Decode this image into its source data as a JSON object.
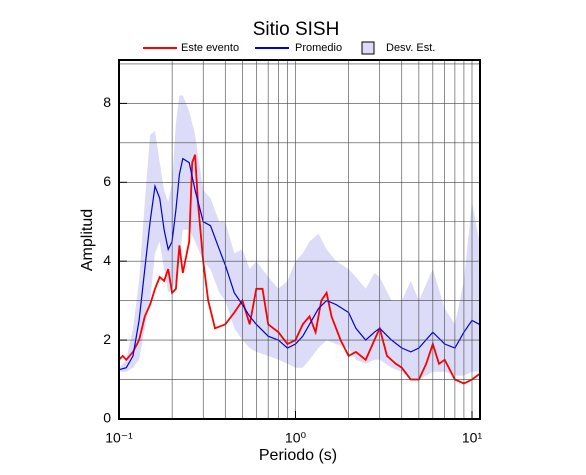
{
  "chart_data": {
    "type": "line",
    "title": "Sitio SISH",
    "x_label": "Periodo (s)",
    "y_label": "Amplitud",
    "log_x": true,
    "grid": true,
    "legend": "top",
    "xlim": [
      0.1,
      11.1
    ],
    "ylim": [
      0,
      9.1
    ],
    "xticks": [
      {
        "value": 0.1,
        "label": "10⁻¹"
      },
      {
        "value": 1,
        "label": "10⁰"
      },
      {
        "value": 10,
        "label": "10¹"
      }
    ],
    "minor_xticks": [
      0.2,
      0.3,
      0.4,
      0.5,
      0.6,
      0.7,
      0.8,
      0.9,
      2,
      3,
      4,
      5,
      6,
      7,
      8,
      9
    ],
    "yticks": [
      0,
      2,
      4,
      6,
      8
    ],
    "minor_yticks": [
      1,
      3,
      5,
      7,
      9
    ],
    "series": [
      {
        "name": "Desv. Est.",
        "kind": "band",
        "color": "#dcdcf8",
        "x": [
          0.1,
          0.11,
          0.12,
          0.13,
          0.14,
          0.15,
          0.16,
          0.17,
          0.18,
          0.19,
          0.2,
          0.21,
          0.22,
          0.23,
          0.25,
          0.27,
          0.3,
          0.33,
          0.37,
          0.4,
          0.45,
          0.5,
          0.55,
          0.6,
          0.7,
          0.8,
          0.9,
          1.0,
          1.1,
          1.2,
          1.35,
          1.5,
          1.7,
          2.0,
          2.2,
          2.5,
          2.8,
          3.0,
          3.5,
          4.0,
          4.5,
          5.0,
          6,
          7,
          8,
          9,
          10,
          11
        ],
        "upper": [
          1.3,
          1.5,
          2.3,
          3.5,
          5.5,
          7.2,
          7.3,
          6.5,
          5.8,
          5.5,
          6.0,
          7.5,
          8.2,
          8.2,
          7.8,
          7.2,
          5.8,
          5.6,
          5.0,
          5.0,
          4.2,
          4.3,
          3.8,
          4.0,
          3.6,
          3.3,
          3.5,
          4.0,
          4.2,
          4.5,
          4.7,
          4.3,
          4.0,
          3.8,
          3.6,
          3.3,
          3.7,
          3.6,
          3.0,
          3.0,
          3.5,
          3.0,
          3.8,
          2.8,
          2.4,
          3.5,
          5.5,
          4.5
        ],
        "lower": [
          1.2,
          1.2,
          1.3,
          1.5,
          2.3,
          3.0,
          4.2,
          4.5,
          3.8,
          3.2,
          3.3,
          3.5,
          4.0,
          4.8,
          4.8,
          4.5,
          4.0,
          3.8,
          3.2,
          3.0,
          2.3,
          2.0,
          1.8,
          1.7,
          1.6,
          1.5,
          1.4,
          1.3,
          1.3,
          1.5,
          1.8,
          2.0,
          1.9,
          1.8,
          1.5,
          1.4,
          1.5,
          1.5,
          1.3,
          1.2,
          1.0,
          1.0,
          1.2,
          1.2,
          1.1,
          1.1,
          1.2,
          1.2
        ]
      },
      {
        "name": "Este evento",
        "kind": "line",
        "color": "#ff0000",
        "x": [
          0.1,
          0.105,
          0.11,
          0.12,
          0.13,
          0.14,
          0.15,
          0.16,
          0.17,
          0.18,
          0.19,
          0.2,
          0.21,
          0.22,
          0.23,
          0.25,
          0.26,
          0.27,
          0.28,
          0.3,
          0.32,
          0.35,
          0.4,
          0.45,
          0.5,
          0.55,
          0.6,
          0.65,
          0.7,
          0.8,
          0.9,
          1.0,
          1.1,
          1.2,
          1.3,
          1.4,
          1.5,
          1.6,
          1.8,
          2.0,
          2.2,
          2.5,
          2.8,
          3.0,
          3.3,
          3.7,
          4.0,
          4.5,
          5.0,
          5.5,
          6.0,
          6.5,
          7,
          8,
          9,
          10,
          11.1
        ],
        "values": [
          1.5,
          1.6,
          1.5,
          1.7,
          2.0,
          2.6,
          2.9,
          3.3,
          3.6,
          3.5,
          3.8,
          3.2,
          3.3,
          4.4,
          3.7,
          4.5,
          6.5,
          6.7,
          5.5,
          4.0,
          3.0,
          2.3,
          2.4,
          2.7,
          3.0,
          2.4,
          3.3,
          3.3,
          2.4,
          2.2,
          1.9,
          2.0,
          2.4,
          2.6,
          2.2,
          3.0,
          3.2,
          2.6,
          2.0,
          1.6,
          1.7,
          1.5,
          2.0,
          2.3,
          1.6,
          1.4,
          1.3,
          1.0,
          1.0,
          1.4,
          1.9,
          1.4,
          1.5,
          1.0,
          0.9,
          1.0,
          1.15
        ]
      },
      {
        "name": "Promedio",
        "kind": "line",
        "color": "#0000e0",
        "x": [
          0.1,
          0.11,
          0.12,
          0.13,
          0.14,
          0.15,
          0.16,
          0.17,
          0.18,
          0.19,
          0.2,
          0.21,
          0.22,
          0.23,
          0.25,
          0.27,
          0.3,
          0.33,
          0.37,
          0.4,
          0.45,
          0.5,
          0.55,
          0.6,
          0.7,
          0.8,
          0.9,
          1.0,
          1.1,
          1.2,
          1.35,
          1.5,
          1.7,
          2.0,
          2.2,
          2.5,
          2.8,
          3.0,
          3.5,
          4.0,
          4.5,
          5.0,
          6,
          7,
          8,
          9,
          10,
          11
        ],
        "values": [
          1.25,
          1.3,
          1.6,
          2.5,
          3.8,
          5.0,
          5.9,
          5.6,
          4.8,
          4.3,
          4.5,
          5.3,
          6.2,
          6.6,
          6.5,
          5.8,
          5.0,
          4.9,
          4.3,
          3.9,
          3.2,
          2.9,
          2.6,
          2.4,
          2.1,
          2.0,
          1.8,
          1.9,
          2.1,
          2.4,
          2.8,
          3.0,
          2.9,
          2.7,
          2.3,
          2.0,
          2.2,
          2.3,
          2.0,
          1.8,
          1.7,
          1.8,
          2.2,
          1.9,
          1.8,
          2.2,
          2.5,
          2.4
        ]
      }
    ]
  }
}
